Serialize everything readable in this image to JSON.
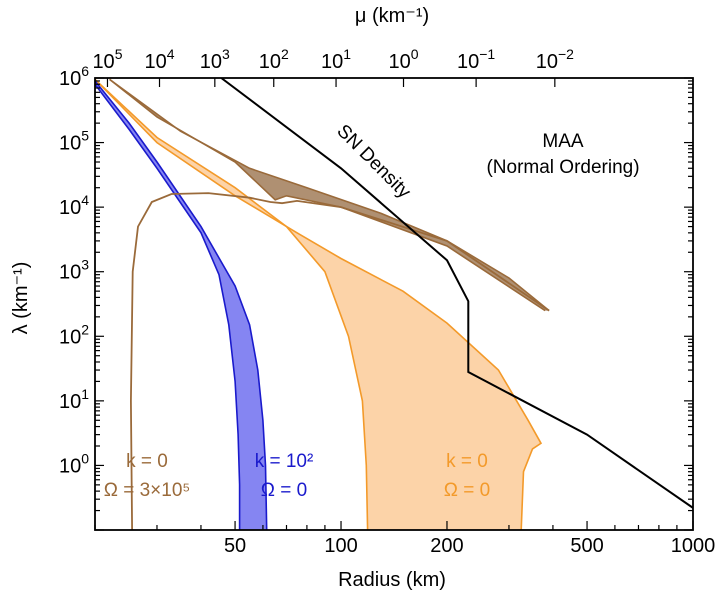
{
  "chart_data": {
    "type": "area",
    "xlabel": "Radius (km)",
    "ylabel": "λ (km⁻¹)",
    "top_axis_label": "μ (km⁻¹)",
    "x_scale": "log",
    "y_scale": "log",
    "xlim": [
      20,
      1000
    ],
    "ylim": [
      0.1,
      1000000
    ],
    "x_ticks": [
      {
        "value": 50,
        "label": "50"
      },
      {
        "value": 100,
        "label": "100"
      },
      {
        "value": 200,
        "label": "200"
      },
      {
        "value": 500,
        "label": "500"
      },
      {
        "value": 1000,
        "label": "1000"
      }
    ],
    "y_ticks": [
      {
        "value": 1,
        "base": "10",
        "exp": "0"
      },
      {
        "value": 10,
        "base": "10",
        "exp": "1"
      },
      {
        "value": 100,
        "base": "10",
        "exp": "2"
      },
      {
        "value": 1000,
        "base": "10",
        "exp": "3"
      },
      {
        "value": 10000,
        "base": "10",
        "exp": "4"
      },
      {
        "value": 100000,
        "base": "10",
        "exp": "5"
      },
      {
        "value": 1000000,
        "base": "10",
        "exp": "6"
      }
    ],
    "top_ticks": [
      {
        "mu": 100000,
        "radius": 21.7,
        "base": "10",
        "exp": "5"
      },
      {
        "mu": 10000,
        "radius": 30.5,
        "base": "10",
        "exp": "4"
      },
      {
        "mu": 1000,
        "radius": 43.8,
        "base": "10",
        "exp": "3"
      },
      {
        "mu": 100,
        "radius": 64.4,
        "base": "10",
        "exp": "2"
      },
      {
        "mu": 10,
        "radius": 96.8,
        "base": "10",
        "exp": "1"
      },
      {
        "mu": 1,
        "radius": 150.5,
        "base": "10",
        "exp": "0"
      },
      {
        "mu": 0.1,
        "radius": 242.0,
        "base": "10",
        "exp": "−1"
      },
      {
        "mu": 0.01,
        "radius": 405.0,
        "base": "10",
        "exp": "−2"
      }
    ],
    "title_box": {
      "line1": "MAA",
      "line2": "(Normal Ordering)"
    },
    "sn_density_label": "SN Density",
    "series": [
      {
        "name": "k = 0, Ω = 0",
        "label_lines": [
          "k = 0",
          "Ω = 0"
        ],
        "color": "#f39a2a",
        "fill": "#fccb99",
        "outer": [
          [
            20,
            950000
          ],
          [
            30,
            100000
          ],
          [
            50,
            15000
          ],
          [
            75,
            4000
          ],
          [
            100,
            1600
          ],
          [
            150,
            500
          ],
          [
            200,
            160
          ],
          [
            280,
            30
          ],
          [
            340,
            5
          ],
          [
            370,
            2.2
          ],
          [
            350,
            1.8
          ],
          [
            330,
            0.8
          ],
          [
            325,
            0.1
          ]
        ],
        "inner": [
          [
            20,
            950000
          ],
          [
            30,
            120000
          ],
          [
            50,
            20000
          ],
          [
            70,
            5000
          ],
          [
            90,
            1000
          ],
          [
            105,
            100
          ],
          [
            115,
            10
          ],
          [
            118,
            1
          ],
          [
            119,
            0.1
          ]
        ]
      },
      {
        "name": "k = 10², Ω = 0",
        "label_lines": [
          "k = 10²",
          "Ω = 0"
        ],
        "color": "#1a1acc",
        "fill": "#7070f0",
        "outer": [
          [
            20,
            900000
          ],
          [
            25,
            200000
          ],
          [
            30,
            50000
          ],
          [
            40,
            5000
          ],
          [
            50,
            600
          ],
          [
            55,
            150
          ],
          [
            58,
            30
          ],
          [
            60,
            5
          ],
          [
            61,
            1
          ],
          [
            61.5,
            0.1
          ]
        ],
        "inner": [
          [
            20,
            800000
          ],
          [
            25,
            160000
          ],
          [
            30,
            40000
          ],
          [
            40,
            4000
          ],
          [
            45,
            900
          ],
          [
            48,
            150
          ],
          [
            50,
            20
          ],
          [
            51,
            3
          ],
          [
            51.5,
            0.5
          ],
          [
            51.5,
            0.1
          ]
        ]
      },
      {
        "name": "k = 0, Ω = 3×10⁵",
        "label_lines": [
          "k = 0",
          "Ω = 3×10⁵"
        ],
        "color": "#9a6a3a",
        "fill": "#ab8a6a",
        "outer": [
          [
            22,
            950000
          ],
          [
            35,
            150000
          ],
          [
            55,
            40000
          ],
          [
            80,
            20000
          ],
          [
            130,
            8000
          ],
          [
            200,
            3000
          ],
          [
            300,
            800
          ],
          [
            390,
            250
          ]
        ],
        "inner": [
          [
            22,
            950000
          ],
          [
            30,
            250000
          ],
          [
            50,
            50000
          ],
          [
            65,
            13000
          ],
          [
            70,
            15000
          ],
          [
            100,
            10000
          ],
          [
            200,
            2500
          ],
          [
            380,
            250
          ]
        ],
        "curve": [
          [
            25.5,
            0.1
          ],
          [
            25.3,
            10
          ],
          [
            25.6,
            1000
          ],
          [
            26.5,
            5000
          ],
          [
            29,
            12000
          ],
          [
            33,
            16000
          ],
          [
            42,
            16500
          ],
          [
            55,
            14000
          ],
          [
            63,
            12000
          ],
          [
            68,
            11500
          ],
          [
            75,
            12500
          ],
          [
            100,
            10000
          ],
          [
            200,
            3000
          ],
          [
            390,
            250
          ]
        ]
      },
      {
        "name": "SN Density",
        "color": "#000000",
        "line": [
          [
            45.7,
            1000000
          ],
          [
            100,
            40000
          ],
          [
            200,
            1500
          ],
          [
            230,
            350
          ],
          [
            230,
            28
          ],
          [
            500,
            3
          ],
          [
            1000,
            0.22
          ]
        ]
      }
    ]
  }
}
